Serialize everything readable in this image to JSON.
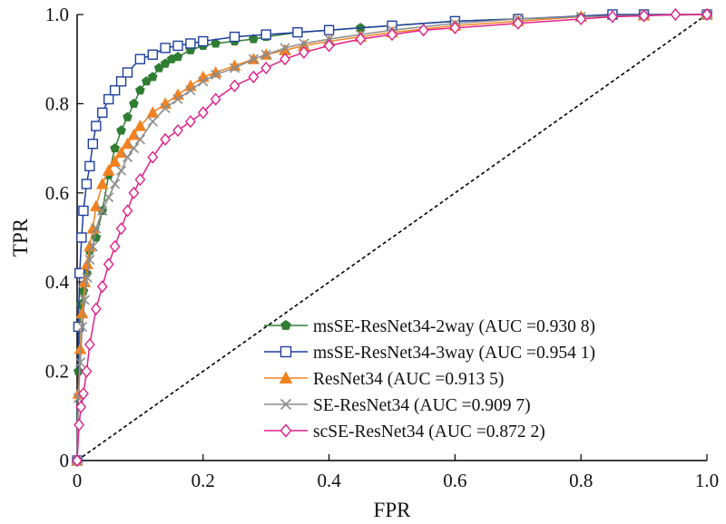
{
  "chart_data": {
    "type": "line",
    "xlabel": "FPR",
    "ylabel": "TPR",
    "xlim": [
      0,
      1.0
    ],
    "ylim": [
      0,
      1.0
    ],
    "x_ticks": [
      "0",
      "0.2",
      "0.4",
      "0.6",
      "0.8",
      "1.0"
    ],
    "y_ticks": [
      "0",
      "0.2",
      "0.4",
      "0.6",
      "0.8",
      "1.0"
    ],
    "grid": false,
    "legend_position": "bottom-right",
    "diagonal": {
      "style": "dashed",
      "color": "#000000",
      "x": [
        0,
        1
      ],
      "y": [
        0,
        1
      ]
    },
    "series": [
      {
        "name": "msSE-ResNet34-2way (AUC =0.930 8)",
        "color": "#2e7d32",
        "marker": "pentagon-filled",
        "x": [
          0,
          0.002,
          0.004,
          0.006,
          0.01,
          0.015,
          0.02,
          0.03,
          0.04,
          0.05,
          0.06,
          0.07,
          0.08,
          0.09,
          0.1,
          0.11,
          0.12,
          0.13,
          0.14,
          0.15,
          0.16,
          0.18,
          0.2,
          0.22,
          0.25,
          0.28,
          0.3,
          0.35,
          0.4,
          0.45,
          0.5,
          0.6,
          0.7,
          0.8,
          0.9,
          1.0
        ],
        "y": [
          0,
          0.2,
          0.3,
          0.35,
          0.38,
          0.42,
          0.47,
          0.5,
          0.56,
          0.64,
          0.7,
          0.74,
          0.77,
          0.8,
          0.83,
          0.85,
          0.86,
          0.88,
          0.89,
          0.9,
          0.905,
          0.92,
          0.93,
          0.935,
          0.94,
          0.945,
          0.95,
          0.96,
          0.965,
          0.97,
          0.975,
          0.985,
          0.99,
          0.995,
          0.998,
          1.0
        ]
      },
      {
        "name": "msSE-ResNet34-3way (AUC =0.954 1)",
        "color": "#1f3f9f",
        "marker": "square-open",
        "x": [
          0,
          0.002,
          0.004,
          0.007,
          0.01,
          0.015,
          0.02,
          0.025,
          0.03,
          0.04,
          0.05,
          0.06,
          0.07,
          0.08,
          0.1,
          0.12,
          0.14,
          0.16,
          0.18,
          0.2,
          0.25,
          0.3,
          0.35,
          0.4,
          0.5,
          0.6,
          0.7,
          0.85,
          0.9,
          1.0
        ],
        "y": [
          0,
          0.3,
          0.42,
          0.5,
          0.56,
          0.62,
          0.66,
          0.71,
          0.75,
          0.78,
          0.81,
          0.83,
          0.85,
          0.87,
          0.9,
          0.91,
          0.925,
          0.93,
          0.935,
          0.94,
          0.95,
          0.955,
          0.96,
          0.965,
          0.975,
          0.985,
          0.99,
          1.0,
          1.0,
          1.0
        ]
      },
      {
        "name": "ResNet34 (AUC =0.913 5)",
        "color": "#f28220",
        "marker": "triangle-filled",
        "x": [
          0,
          0.002,
          0.005,
          0.008,
          0.012,
          0.016,
          0.02,
          0.025,
          0.03,
          0.04,
          0.05,
          0.06,
          0.07,
          0.08,
          0.09,
          0.1,
          0.12,
          0.14,
          0.16,
          0.18,
          0.2,
          0.22,
          0.25,
          0.28,
          0.3,
          0.33,
          0.36,
          0.4,
          0.45,
          0.5,
          0.6,
          0.7,
          0.8,
          0.9,
          1.0
        ],
        "y": [
          0,
          0.15,
          0.25,
          0.33,
          0.4,
          0.44,
          0.48,
          0.52,
          0.57,
          0.62,
          0.65,
          0.67,
          0.69,
          0.71,
          0.73,
          0.75,
          0.78,
          0.8,
          0.82,
          0.84,
          0.86,
          0.87,
          0.885,
          0.9,
          0.91,
          0.92,
          0.93,
          0.94,
          0.95,
          0.96,
          0.975,
          0.985,
          0.995,
          0.998,
          1.0
        ]
      },
      {
        "name": "SE-ResNet34 (AUC =0.909 7)",
        "color": "#8c8c8c",
        "marker": "x",
        "x": [
          0,
          0.002,
          0.005,
          0.008,
          0.012,
          0.016,
          0.02,
          0.025,
          0.03,
          0.04,
          0.05,
          0.06,
          0.07,
          0.08,
          0.09,
          0.1,
          0.12,
          0.14,
          0.16,
          0.18,
          0.2,
          0.22,
          0.25,
          0.28,
          0.3,
          0.33,
          0.36,
          0.4,
          0.45,
          0.5,
          0.6,
          0.7,
          0.8,
          0.9,
          1.0
        ],
        "y": [
          0,
          0.14,
          0.22,
          0.3,
          0.36,
          0.41,
          0.45,
          0.48,
          0.52,
          0.56,
          0.59,
          0.62,
          0.65,
          0.68,
          0.7,
          0.72,
          0.76,
          0.79,
          0.81,
          0.83,
          0.85,
          0.865,
          0.88,
          0.9,
          0.91,
          0.925,
          0.935,
          0.945,
          0.955,
          0.965,
          0.98,
          0.99,
          0.995,
          0.998,
          1.0
        ]
      },
      {
        "name": "scSE-ResNet34 (AUC =0.872 2)",
        "color": "#e0218a",
        "marker": "diamond-open",
        "x": [
          0,
          0.003,
          0.006,
          0.01,
          0.015,
          0.02,
          0.03,
          0.04,
          0.05,
          0.06,
          0.07,
          0.08,
          0.09,
          0.1,
          0.12,
          0.14,
          0.16,
          0.18,
          0.2,
          0.22,
          0.25,
          0.28,
          0.3,
          0.33,
          0.36,
          0.4,
          0.45,
          0.5,
          0.55,
          0.6,
          0.7,
          0.8,
          0.85,
          0.9,
          0.95,
          1.0
        ],
        "y": [
          0,
          0.08,
          0.12,
          0.15,
          0.2,
          0.26,
          0.34,
          0.39,
          0.44,
          0.48,
          0.52,
          0.56,
          0.6,
          0.63,
          0.68,
          0.72,
          0.74,
          0.76,
          0.78,
          0.81,
          0.84,
          0.86,
          0.88,
          0.9,
          0.915,
          0.93,
          0.945,
          0.955,
          0.965,
          0.97,
          0.98,
          0.99,
          0.995,
          0.997,
          1.0,
          1.0
        ]
      }
    ]
  }
}
